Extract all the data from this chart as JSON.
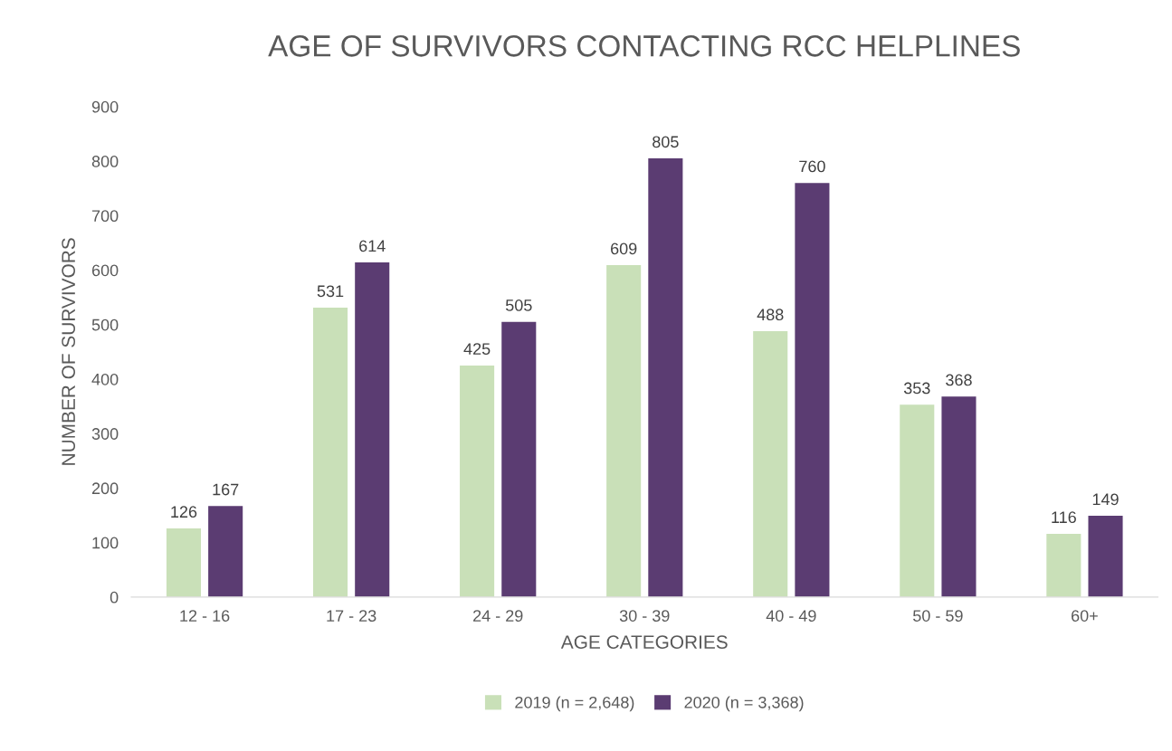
{
  "chart_data": {
    "type": "bar",
    "title": "AGE OF SURVIVORS CONTACTING RCC HELPLINES",
    "xlabel": "AGE CATEGORIES",
    "ylabel": "NUMBER OF SURVIVORS",
    "categories": [
      "12 - 16",
      "17 - 23",
      "24 - 29",
      "30 - 39",
      "40 - 49",
      "50 - 59",
      "60+"
    ],
    "series": [
      {
        "name": "2019 (n = 2,648)",
        "color": "#c9e0b8",
        "values": [
          126,
          531,
          425,
          609,
          488,
          353,
          116
        ]
      },
      {
        "name": "2020 (n = 3,368)",
        "color": "#5b3c72",
        "values": [
          167,
          614,
          505,
          805,
          760,
          368,
          149
        ]
      }
    ],
    "ylim": [
      0,
      900
    ],
    "yticks": [
      0,
      100,
      200,
      300,
      400,
      500,
      600,
      700,
      800,
      900
    ],
    "grid": false,
    "legend": "bottom",
    "data_labels": true
  }
}
